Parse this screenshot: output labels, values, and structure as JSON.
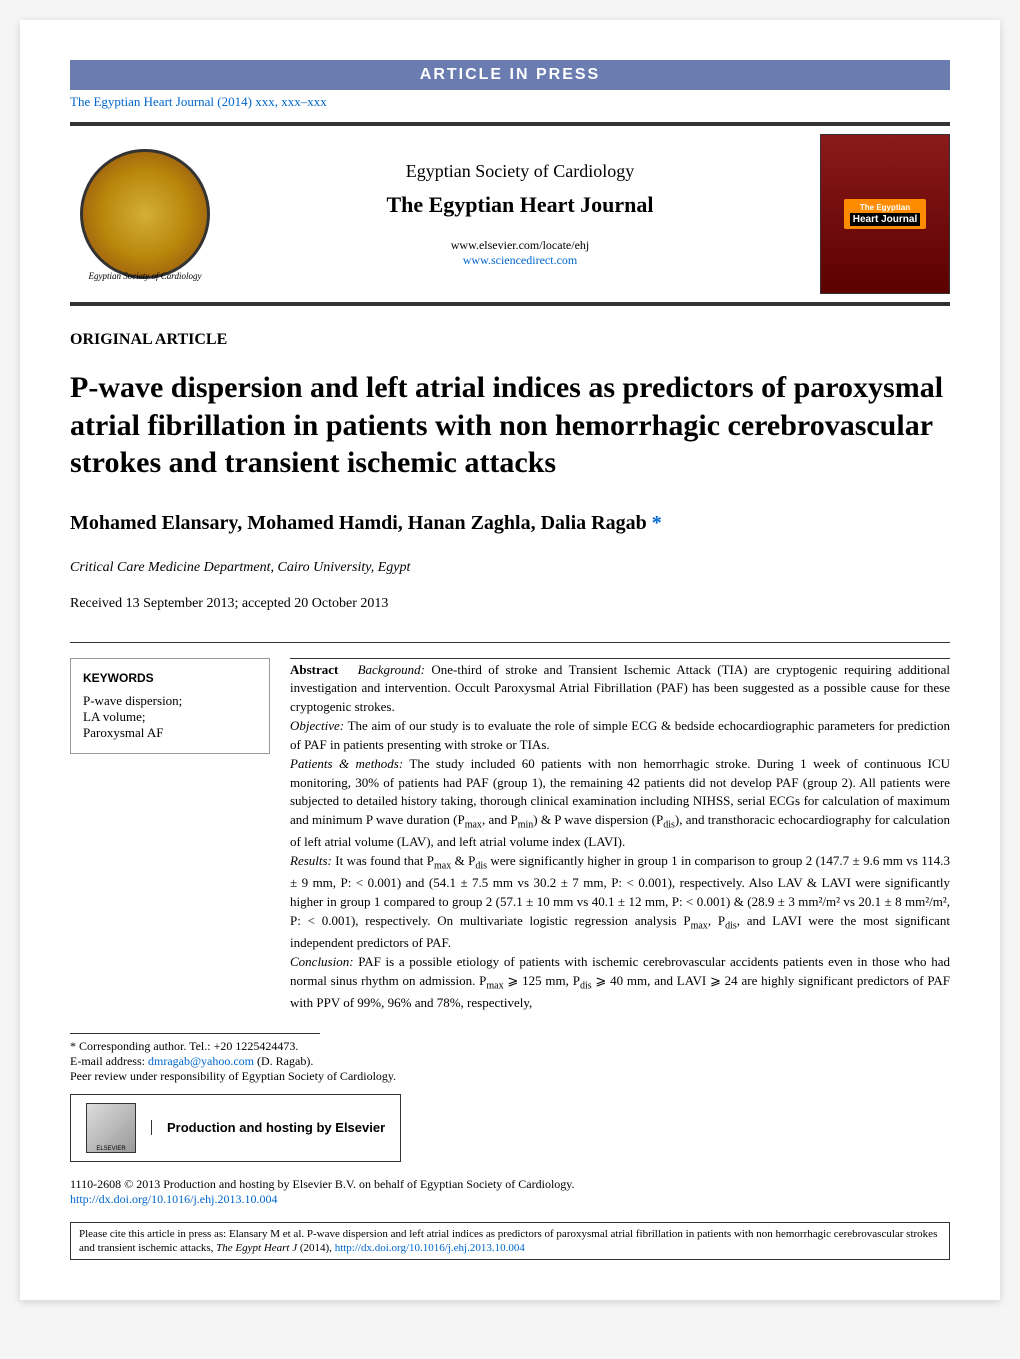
{
  "banner": "ARTICLE IN PRESS",
  "topCitation": "The Egyptian Heart Journal (2014) xxx, xxx–xxx",
  "header": {
    "society": "Egyptian Society of Cardiology",
    "journal": "The Egyptian Heart Journal",
    "url1": "www.elsevier.com/locate/ehj",
    "url2": "www.sciencedirect.com",
    "coverBadge1": "The Egyptian",
    "coverBadge2": "Heart Journal",
    "logoCaption": "Egyptian Society of Cardiology"
  },
  "articleType": "ORIGINAL ARTICLE",
  "title": "P-wave dispersion and left atrial indices as predictors of paroxysmal atrial fibrillation in patients with non hemorrhagic cerebrovascular strokes and transient ischemic attacks",
  "authors": "Mohamed Elansary, Mohamed Hamdi, Hanan Zaghla, Dalia Ragab",
  "affiliation": "Critical Care Medicine Department, Cairo University, Egypt",
  "dates": "Received 13 September 2013; accepted 20 October 2013",
  "keywords": {
    "heading": "KEYWORDS",
    "items": "P-wave dispersion;\nLA volume;\nParoxysmal AF"
  },
  "abstract": {
    "label": "Abstract",
    "backgroundLabel": "Background:",
    "background": " One-third of stroke and Transient Ischemic Attack (TIA) are cryptogenic requiring additional investigation and intervention. Occult Paroxysmal Atrial Fibrillation (PAF) has been suggested as a possible cause for these cryptogenic strokes.",
    "objectiveLabel": "Objective:",
    "objective": " The aim of our study is to evaluate the role of simple ECG & bedside echocardiographic parameters for prediction of PAF in patients presenting with stroke or TIAs.",
    "methodsLabel": "Patients & methods:",
    "methods1": " The study included 60 patients with non hemorrhagic stroke. During 1 week of continuous ICU monitoring, 30% of patients had PAF (group 1), the remaining 42 patients did not develop PAF (group 2). All patients were subjected to detailed history taking, thorough clinical examination including NIHSS, serial ECGs for calculation of maximum and minimum P wave duration (P",
    "methods2": ", and P",
    "methods3": ") & P wave dispersion (P",
    "methods4": "), and transthoracic echocardiography for calculation of left atrial volume (LAV), and left atrial volume index (LAVI).",
    "resultsLabel": "Results:",
    "results1": " It was found that P",
    "results2": " & P",
    "results3": " were significantly higher in group 1 in comparison to group 2 (147.7 ± 9.6 mm vs 114.3 ± 9 mm, P: < 0.001) and (54.1 ± 7.5 mm vs 30.2 ± 7 mm, P: < 0.001), respectively. Also LAV & LAVI were significantly higher in group 1 compared to group 2 (57.1 ± 10 mm vs 40.1 ± 12 mm, P: < 0.001) & (28.9 ± 3 mm²/m² vs 20.1 ± 8 mm²/m², P: < 0.001), respectively. On multivariate logistic regression analysis P",
    "results4": ", P",
    "results5": ", and LAVI were the most significant independent predictors of PAF.",
    "conclusionLabel": "Conclusion:",
    "conclusion1": " PAF is a possible etiology of patients with ischemic cerebrovascular accidents patients even in those who had normal sinus rhythm on admission. P",
    "conclusion2": " ⩾ 125 mm, P",
    "conclusion3": " ⩾ 40 mm, and LAVI ⩾ 24 are highly significant predictors of PAF with PPV of 99%, 96% and 78%, respectively,",
    "subMax": "max",
    "subMin": "min",
    "subDis": "dis"
  },
  "corresponding": {
    "line1": "* Corresponding author. Tel.: +20 1225424473.",
    "emailLabel": "E-mail address: ",
    "email": "dmragab@yahoo.com",
    "emailSuffix": " (D. Ragab).",
    "peerReview": "Peer review under responsibility of Egyptian Society of Cardiology."
  },
  "elsevier": {
    "logo": "ELSEVIER",
    "text": "Production and hosting by Elsevier"
  },
  "copyright": {
    "text": "1110-2608 © 2013 Production and hosting by Elsevier B.V. on behalf of Egyptian Society of Cardiology.",
    "doi": "http://dx.doi.org/10.1016/j.ehj.2013.10.004"
  },
  "citeBox": {
    "text1": "Please cite this article in press as: Elansary M et al. P-wave dispersion and left atrial indices as predictors of paroxysmal atrial fibrillation in patients with non hemorrhagic cerebrovascular strokes and transient ischemic attacks, ",
    "journal": "The Egypt Heart J",
    "text2": " (2014), ",
    "link": "http://dx.doi.org/10.1016/j.ehj.2013.10.004"
  }
}
